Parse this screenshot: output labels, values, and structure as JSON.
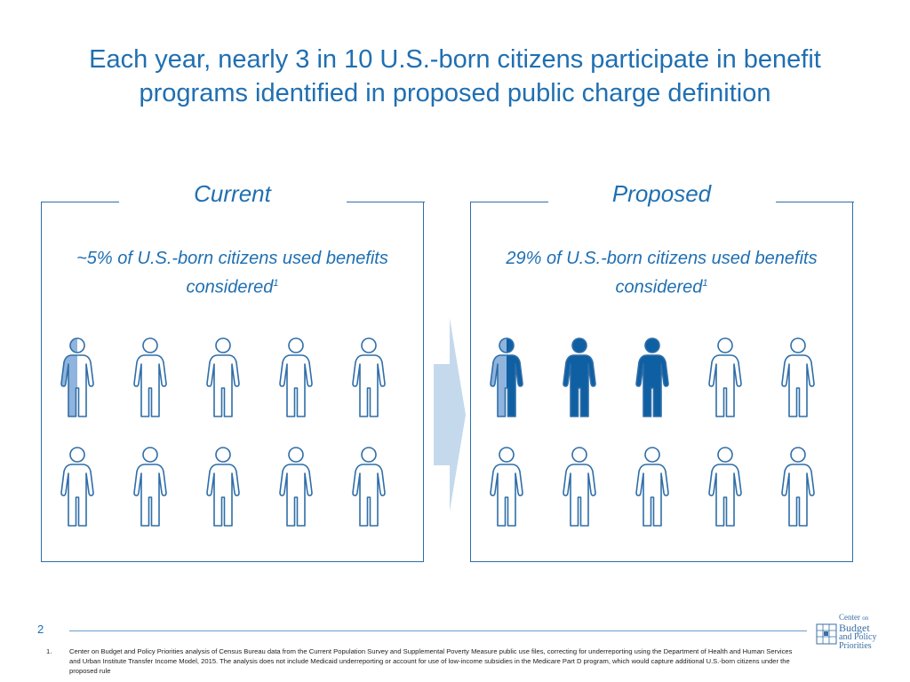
{
  "slide": {
    "title": "Each year, nearly 3 in 10 U.S.-born citizens participate in benefit programs identified in proposed public charge definition",
    "page_number": "2"
  },
  "panels": [
    {
      "heading": "Current",
      "description": "~5% of U.S.-born citizens used benefits considered",
      "footnote_ref": "1",
      "figures_per_row": 5,
      "rows": [
        [
          "half",
          "empty",
          "empty",
          "empty",
          "empty"
        ],
        [
          "empty",
          "empty",
          "empty",
          "empty",
          "empty"
        ]
      ]
    },
    {
      "heading": "Proposed",
      "description": "29% of U.S.-born citizens used benefits considered",
      "footnote_ref": "1",
      "figures_per_row": 5,
      "rows": [
        [
          "half-full",
          "full",
          "full",
          "empty",
          "empty"
        ],
        [
          "empty",
          "empty",
          "empty",
          "empty",
          "empty"
        ]
      ]
    }
  ],
  "colors": {
    "title": "#1f6fb2",
    "outline": "#2f6ea8",
    "full_fill": "#0f5fa3",
    "light_fill": "#8fb4dd",
    "arrow": "#c5d9ec"
  },
  "footnote": {
    "number": "1.",
    "text": "Center on Budget and Policy Priorities analysis of Census Bureau data from the Current Population Survey and Supplemental Poverty Measure public use files, correcting for underreporting using the Department of Health and Human Services and Urban Institute Transfer Income Model, 2015. The analysis does not include Medicaid underreporting or account for use of low-income subsidies in the Medicare Part D program, which would capture additional U.S.-born citizens under the proposed rule"
  },
  "logo": {
    "line1": "Center",
    "line1b": "on",
    "line2": "Budget",
    "line3": "and Policy",
    "line4": "Priorities",
    "icon": "cbpp-grid-logo-icon"
  }
}
